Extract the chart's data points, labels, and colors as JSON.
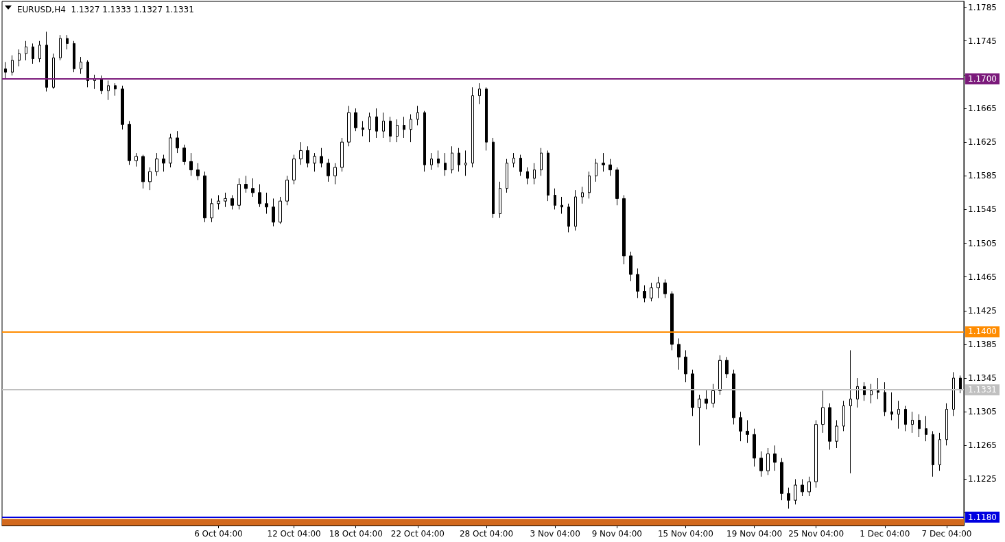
{
  "chart_data": {
    "type": "candlestick",
    "title": "EURUSD,H4  1.1327 1.1333 1.1327 1.1331",
    "color": "#000000",
    "categories": [
      null,
      null,
      null,
      null,
      null,
      null,
      null,
      null,
      null,
      null,
      null,
      null,
      null,
      null,
      null,
      null,
      null,
      null,
      null,
      null,
      null,
      null,
      null,
      null,
      null,
      null,
      null,
      null,
      null,
      null,
      null,
      "6 Oct 04:00",
      null,
      null,
      null,
      null,
      null,
      null,
      null,
      null,
      null,
      null,
      "12 Oct 04:00",
      null,
      null,
      null,
      null,
      null,
      null,
      null,
      null,
      "18 Oct 04:00",
      null,
      null,
      null,
      null,
      null,
      null,
      null,
      null,
      "22 Oct 04:00",
      null,
      null,
      null,
      null,
      null,
      null,
      null,
      null,
      null,
      "28 Oct 04:00",
      null,
      null,
      null,
      null,
      null,
      null,
      null,
      null,
      null,
      "3 Nov 04:00",
      null,
      null,
      null,
      null,
      null,
      null,
      null,
      null,
      "9 Nov 04:00",
      null,
      null,
      null,
      null,
      null,
      null,
      null,
      null,
      null,
      "15 Nov 04:00",
      null,
      null,
      null,
      null,
      null,
      null,
      null,
      null,
      null,
      "19 Nov 04:00",
      null,
      null,
      null,
      null,
      null,
      null,
      null,
      null,
      "25 Nov 04:00",
      null,
      null,
      null,
      null,
      null,
      null,
      null,
      null,
      null,
      "1 Dec 04:00",
      null,
      null,
      null,
      null,
      null,
      null,
      null,
      null,
      "7 Dec 04:00",
      null,
      null
    ],
    "ohlc": [
      [
        1.1712,
        1.172,
        1.17,
        1.1708
      ],
      [
        1.1708,
        1.1728,
        1.1704,
        1.1722
      ],
      [
        1.1722,
        1.1735,
        1.1715,
        1.173
      ],
      [
        1.173,
        1.1745,
        1.1722,
        1.1738
      ],
      [
        1.1738,
        1.1742,
        1.1718,
        1.1724
      ],
      [
        1.1724,
        1.1745,
        1.172,
        1.174
      ],
      [
        1.174,
        1.1756,
        1.1685,
        1.169
      ],
      [
        1.169,
        1.173,
        1.1688,
        1.1725
      ],
      [
        1.1725,
        1.1752,
        1.1722,
        1.1748
      ],
      [
        1.1748,
        1.1752,
        1.1735,
        1.1742
      ],
      [
        1.1742,
        1.1745,
        1.1708,
        1.1712
      ],
      [
        1.1712,
        1.1726,
        1.1706,
        1.172
      ],
      [
        1.172,
        1.1722,
        1.169,
        1.1698
      ],
      [
        1.1698,
        1.1705,
        1.1688,
        1.17
      ],
      [
        1.17,
        1.1704,
        1.1682,
        1.1686
      ],
      [
        1.1686,
        1.1698,
        1.1675,
        1.1692
      ],
      [
        1.1692,
        1.1695,
        1.168,
        1.1688
      ],
      [
        1.1688,
        1.1692,
        1.164,
        1.1646
      ],
      [
        1.1646,
        1.165,
        1.1598,
        1.1603
      ],
      [
        1.1603,
        1.1612,
        1.1596,
        1.1608
      ],
      [
        1.1608,
        1.161,
        1.157,
        1.1578
      ],
      [
        1.1578,
        1.1595,
        1.1568,
        1.159
      ],
      [
        1.159,
        1.1612,
        1.1585,
        1.1605
      ],
      [
        1.1605,
        1.161,
        1.159,
        1.16
      ],
      [
        1.16,
        1.1635,
        1.1595,
        1.163
      ],
      [
        1.163,
        1.1638,
        1.1612,
        1.1618
      ],
      [
        1.1618,
        1.1622,
        1.1598,
        1.1602
      ],
      [
        1.1602,
        1.1612,
        1.1585,
        1.1592
      ],
      [
        1.1592,
        1.16,
        1.158,
        1.1585
      ],
      [
        1.1585,
        1.159,
        1.153,
        1.1535
      ],
      [
        1.1535,
        1.1558,
        1.153,
        1.1552
      ],
      [
        1.1552,
        1.1562,
        1.1545,
        1.1555
      ],
      [
        1.1555,
        1.1565,
        1.1548,
        1.1558
      ],
      [
        1.1558,
        1.1562,
        1.1545,
        1.155
      ],
      [
        1.155,
        1.1582,
        1.1545,
        1.1575
      ],
      [
        1.1575,
        1.1585,
        1.1565,
        1.157
      ],
      [
        1.157,
        1.1582,
        1.156,
        1.1565
      ],
      [
        1.1565,
        1.1575,
        1.1548,
        1.1552
      ],
      [
        1.1552,
        1.1565,
        1.154,
        1.1548
      ],
      [
        1.1548,
        1.1558,
        1.1525,
        1.153
      ],
      [
        1.153,
        1.156,
        1.1528,
        1.1555
      ],
      [
        1.1555,
        1.1585,
        1.155,
        1.158
      ],
      [
        1.158,
        1.161,
        1.1575,
        1.1605
      ],
      [
        1.1605,
        1.1625,
        1.1598,
        1.1615
      ],
      [
        1.1615,
        1.162,
        1.1595,
        1.16
      ],
      [
        1.16,
        1.1612,
        1.159,
        1.1608
      ],
      [
        1.1608,
        1.1618,
        1.1595,
        1.16
      ],
      [
        1.16,
        1.1605,
        1.1578,
        1.1585
      ],
      [
        1.1585,
        1.16,
        1.1575,
        1.1595
      ],
      [
        1.1595,
        1.163,
        1.159,
        1.1625
      ],
      [
        1.1625,
        1.1668,
        1.162,
        1.166
      ],
      [
        1.166,
        1.1665,
        1.1638,
        1.1642
      ],
      [
        1.1642,
        1.165,
        1.1632,
        1.164
      ],
      [
        1.164,
        1.166,
        1.1625,
        1.1655
      ],
      [
        1.1655,
        1.1665,
        1.163,
        1.1638
      ],
      [
        1.1638,
        1.166,
        1.163,
        1.165
      ],
      [
        1.165,
        1.1655,
        1.1625,
        1.1632
      ],
      [
        1.1632,
        1.1652,
        1.1625,
        1.1645
      ],
      [
        1.1645,
        1.1655,
        1.163,
        1.164
      ],
      [
        1.164,
        1.1658,
        1.1625,
        1.1652
      ],
      [
        1.1652,
        1.1668,
        1.1645,
        1.166
      ],
      [
        1.166,
        1.1662,
        1.159,
        1.1598
      ],
      [
        1.1598,
        1.1612,
        1.1592,
        1.1605
      ],
      [
        1.1605,
        1.1615,
        1.1595,
        1.16
      ],
      [
        1.16,
        1.1612,
        1.1585,
        1.1592
      ],
      [
        1.1592,
        1.162,
        1.1588,
        1.1612
      ],
      [
        1.1612,
        1.1618,
        1.159,
        1.1598
      ],
      [
        1.1598,
        1.1615,
        1.1585,
        1.16
      ],
      [
        1.16,
        1.169,
        1.1595,
        1.168
      ],
      [
        1.168,
        1.1695,
        1.167,
        1.1688
      ],
      [
        1.1688,
        1.169,
        1.1615,
        1.1625
      ],
      [
        1.1625,
        1.163,
        1.1535,
        1.154
      ],
      [
        1.154,
        1.1578,
        1.1535,
        1.157
      ],
      [
        1.157,
        1.1605,
        1.1565,
        1.16
      ],
      [
        1.16,
        1.1612,
        1.1595,
        1.1606
      ],
      [
        1.1606,
        1.161,
        1.1585,
        1.159
      ],
      [
        1.159,
        1.1595,
        1.1575,
        1.1582
      ],
      [
        1.1582,
        1.16,
        1.1575,
        1.1592
      ],
      [
        1.1592,
        1.1618,
        1.1585,
        1.1612
      ],
      [
        1.1612,
        1.1615,
        1.1555,
        1.1562
      ],
      [
        1.1562,
        1.157,
        1.1545,
        1.155
      ],
      [
        1.155,
        1.156,
        1.154,
        1.1548
      ],
      [
        1.1548,
        1.1552,
        1.1518,
        1.1525
      ],
      [
        1.1525,
        1.1568,
        1.152,
        1.156
      ],
      [
        1.156,
        1.1572,
        1.1552,
        1.1565
      ],
      [
        1.1565,
        1.159,
        1.1558,
        1.1585
      ],
      [
        1.1585,
        1.1605,
        1.1578,
        1.16
      ],
      [
        1.16,
        1.1612,
        1.159,
        1.1598
      ],
      [
        1.1598,
        1.1605,
        1.1585,
        1.1592
      ],
      [
        1.1592,
        1.1595,
        1.155,
        1.1558
      ],
      [
        1.1558,
        1.1562,
        1.148,
        1.149
      ],
      [
        1.149,
        1.1495,
        1.146,
        1.1468
      ],
      [
        1.1468,
        1.1475,
        1.144,
        1.1448
      ],
      [
        1.1448,
        1.1455,
        1.1435,
        1.144
      ],
      [
        1.144,
        1.1458,
        1.1436,
        1.1452
      ],
      [
        1.1452,
        1.1465,
        1.144,
        1.1458
      ],
      [
        1.1458,
        1.1462,
        1.144,
        1.1445
      ],
      [
        1.1445,
        1.1448,
        1.1378,
        1.1385
      ],
      [
        1.1385,
        1.1392,
        1.1355,
        1.137
      ],
      [
        1.137,
        1.1378,
        1.134,
        1.135
      ],
      [
        1.135,
        1.1355,
        1.13,
        1.131
      ],
      [
        1.131,
        1.1325,
        1.1265,
        1.132
      ],
      [
        1.132,
        1.1332,
        1.1308,
        1.1315
      ],
      [
        1.1315,
        1.1338,
        1.131,
        1.133
      ],
      [
        1.133,
        1.1372,
        1.1325,
        1.1366
      ],
      [
        1.1366,
        1.137,
        1.1345,
        1.135
      ],
      [
        1.135,
        1.1355,
        1.129,
        1.1298
      ],
      [
        1.1298,
        1.1305,
        1.127,
        1.1282
      ],
      [
        1.1282,
        1.1295,
        1.1268,
        1.1278
      ],
      [
        1.1278,
        1.1285,
        1.124,
        1.125
      ],
      [
        1.125,
        1.1258,
        1.1228,
        1.1235
      ],
      [
        1.1235,
        1.1262,
        1.123,
        1.1255
      ],
      [
        1.1255,
        1.1265,
        1.1235,
        1.1245
      ],
      [
        1.1245,
        1.125,
        1.12,
        1.1208
      ],
      [
        1.1208,
        1.1215,
        1.119,
        1.12
      ],
      [
        1.12,
        1.1225,
        1.1195,
        1.1218
      ],
      [
        1.1218,
        1.1225,
        1.1205,
        1.121
      ],
      [
        1.121,
        1.1228,
        1.1205,
        1.1222
      ],
      [
        1.1222,
        1.1295,
        1.1215,
        1.129
      ],
      [
        1.129,
        1.133,
        1.128,
        1.131
      ],
      [
        1.131,
        1.1315,
        1.126,
        1.127
      ],
      [
        1.127,
        1.1295,
        1.1262,
        1.1288
      ],
      [
        1.1288,
        1.1318,
        1.1282,
        1.1312
      ],
      [
        1.1312,
        1.1378,
        1.1232,
        1.132
      ],
      [
        1.132,
        1.1345,
        1.131,
        1.1335
      ],
      [
        1.1335,
        1.134,
        1.1318,
        1.1325
      ],
      [
        1.1325,
        1.1338,
        1.1315,
        1.133
      ],
      [
        1.133,
        1.1345,
        1.132,
        1.1328
      ],
      [
        1.1328,
        1.134,
        1.13,
        1.1305
      ],
      [
        1.1305,
        1.1328,
        1.1295,
        1.1302
      ],
      [
        1.1302,
        1.1318,
        1.1285,
        1.1308
      ],
      [
        1.1308,
        1.1312,
        1.1282,
        1.129
      ],
      [
        1.129,
        1.1305,
        1.128,
        1.1295
      ],
      [
        1.1295,
        1.1302,
        1.1275,
        1.1285
      ],
      [
        1.1285,
        1.13,
        1.127,
        1.1278
      ],
      [
        1.1278,
        1.1282,
        1.1228,
        1.1242
      ],
      [
        1.1242,
        1.128,
        1.1235,
        1.1272
      ],
      [
        1.1272,
        1.1315,
        1.1265,
        1.1308
      ],
      [
        1.1308,
        1.1352,
        1.13,
        1.1345
      ],
      [
        1.1345,
        1.1348,
        1.1327,
        1.1331
      ]
    ],
    "ylim": [
      1.117,
      1.1792
    ],
    "yticks": [
      {
        "value": 1.1185,
        "label": null
      },
      1.1225,
      1.1265,
      1.1305,
      1.1345,
      1.1385,
      1.1425,
      1.1465,
      1.1505,
      1.1545,
      1.1585,
      1.1625,
      1.1665,
      {
        "value": 1.1705,
        "label": null
      },
      1.1745,
      1.1785
    ],
    "ref_lines": [
      {
        "axis": "y",
        "value": 1.17,
        "label": "1.1700",
        "color": "#7b1a7b"
      },
      {
        "axis": "y",
        "value": 1.14,
        "label": "1.1400",
        "color": "#ff8c00"
      },
      {
        "axis": "y",
        "value": 1.1331,
        "label": "1.1331",
        "color": "#c0c0c0"
      },
      {
        "axis": "y",
        "value": 1.118,
        "label": "1.1180",
        "color": "#0000e0"
      }
    ],
    "bands": [
      {
        "axis": "y",
        "from": 1.117,
        "to": 1.1178,
        "color": "#d2691e"
      }
    ],
    "grid": false
  }
}
